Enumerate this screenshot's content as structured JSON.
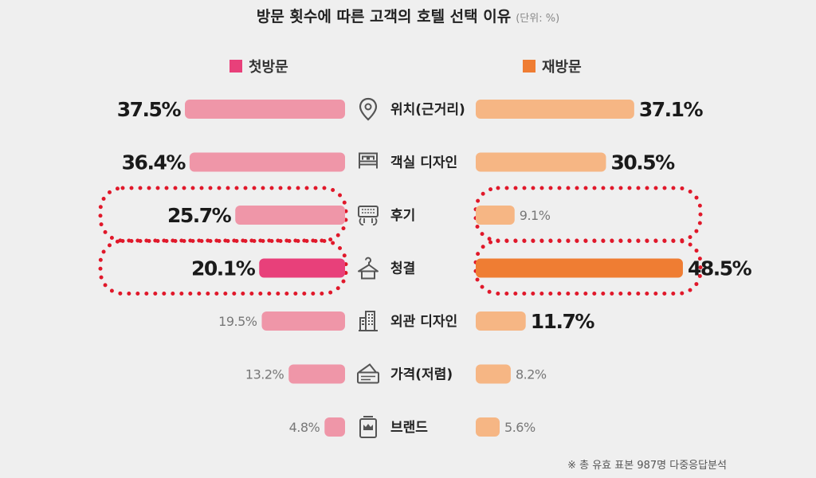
{
  "title": "방문 횟수에 따른 고객의 호텔 선택 이유",
  "unit": "(단위: %)",
  "footnote": "※ 총 유효 표본 987명 다중응답분석",
  "colors": {
    "first_bar": "#ef96a8",
    "first_bar_highlight": "#e8407a",
    "first_legend": "#e8407a",
    "revisit_bar": "#f6b684",
    "revisit_bar_highlight": "#ef7d33",
    "revisit_legend": "#ef7d33",
    "highlight_dots": "#e0182a",
    "icon": "#555555"
  },
  "chart_data": {
    "type": "bar",
    "categories": [
      "위치(근거리)",
      "객실 디자인",
      "후기",
      "청결",
      "외관 디자인",
      "가격(저렴)",
      "브랜드"
    ],
    "category_icons": [
      "location-pin-icon",
      "bed-icon",
      "keyboard-review-icon",
      "hanger-icon",
      "building-icon",
      "wallet-icon",
      "brand-badge-icon"
    ],
    "series": [
      {
        "name": "첫방문",
        "values": [
          37.5,
          36.4,
          25.7,
          20.1,
          19.5,
          13.2,
          4.8
        ],
        "labels": [
          "37.5%",
          "36.4%",
          "25.7%",
          "20.1%",
          "19.5%",
          "13.2%",
          "4.8%"
        ],
        "emphasis": [
          "bold",
          "bold",
          "bold",
          "bold",
          "light",
          "light",
          "light"
        ]
      },
      {
        "name": "재방문",
        "values": [
          37.1,
          30.5,
          9.1,
          48.5,
          11.7,
          8.2,
          5.6
        ],
        "labels": [
          "37.1%",
          "30.5%",
          "9.1%",
          "48.5%",
          "11.7%",
          "8.2%",
          "5.6%"
        ],
        "emphasis": [
          "bold",
          "bold",
          "light",
          "bold",
          "bold",
          "light",
          "light"
        ]
      }
    ],
    "highlighted_categories": [
      "후기",
      "청결"
    ],
    "highlighted_bar": {
      "청결": true
    },
    "xlim": [
      0,
      50
    ],
    "legend": "top",
    "grid": false
  }
}
